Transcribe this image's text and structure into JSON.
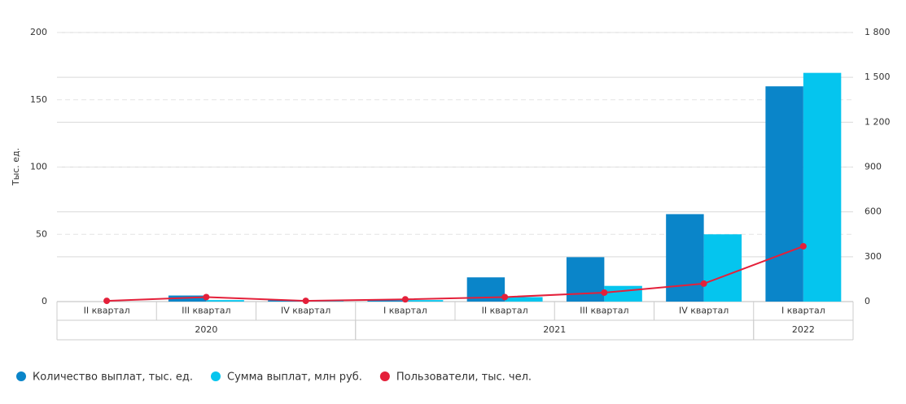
{
  "chart_data": {
    "type": "bar",
    "y_label": "Тыс. ед.",
    "groups": [
      {
        "name": "2020",
        "categories": [
          "II квартал",
          "III квартал",
          "IV квартал"
        ]
      },
      {
        "name": "2021",
        "categories": [
          "I квартал",
          "II квартал",
          "III квартал",
          "IV квартал"
        ]
      },
      {
        "name": "2022",
        "categories": [
          "I квартал"
        ]
      }
    ],
    "series": [
      {
        "name": "Количество выплат, тыс. ед.",
        "color": "#0a85c9",
        "type": "bar",
        "axis": "y",
        "values": [
          0,
          4.5,
          1,
          1,
          18,
          33,
          65,
          160
        ]
      },
      {
        "name": "Сумма выплат, млн руб.",
        "color": "#05c5ee",
        "type": "bar",
        "axis": "y2",
        "values": [
          0,
          10,
          5,
          10,
          30,
          105,
          450,
          1530
        ]
      },
      {
        "name": "Пользователи, тыс. чел.",
        "color": "#e4203a",
        "type": "line",
        "axis": "y2",
        "values": [
          5,
          30,
          5,
          15,
          30,
          60,
          120,
          370
        ]
      }
    ],
    "ylim": [
      0,
      200
    ],
    "yticks": [
      0,
      50,
      100,
      150,
      200
    ],
    "y2lim": [
      0,
      1800
    ],
    "y2ticks": [
      0,
      300,
      600,
      900,
      {
        "value": 1200,
        "label": "1 200"
      },
      {
        "value": 1500,
        "label": "1 500"
      },
      {
        "value": 1800,
        "label": "1 800"
      }
    ],
    "grid": true,
    "legend": "bottom-left"
  }
}
